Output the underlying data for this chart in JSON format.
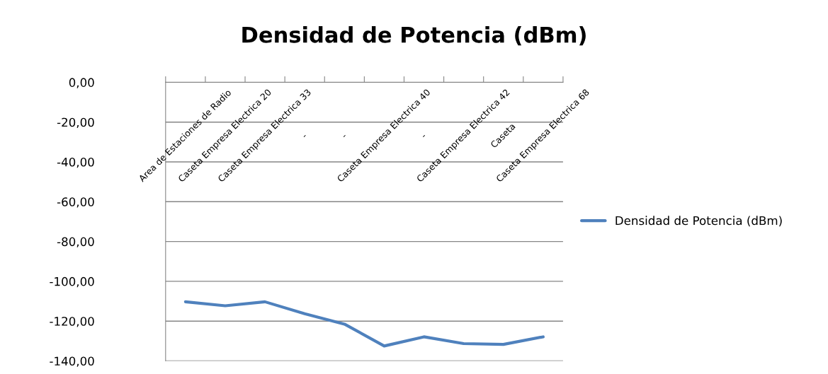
{
  "chart_data": {
    "type": "line",
    "title": "Densidad de Potencia (dBm)",
    "categories": [
      "Area de Estaciones de Radio",
      "Caseta Empresa Electrica 20",
      "Caseta Empresa Electrica 33",
      "-",
      "-",
      "Caseta Empresa Electrica 40",
      "-",
      "Caseta Empresa Electrica 42",
      "Caseta",
      "Caseta Empresa Electrica 68"
    ],
    "series": [
      {
        "name": "Densidad de Potencia (dBm)",
        "color": "#4f81bd",
        "values": [
          -110.3,
          -112.3,
          -110.3,
          -116.3,
          -121.5,
          -132.5,
          -127.9,
          -131.3,
          -131.7,
          -127.9
        ]
      }
    ],
    "ylim": [
      -140,
      0
    ],
    "yticks": [
      {
        "value": -140,
        "label": "-140,00"
      },
      {
        "value": -120,
        "label": "-120,00"
      },
      {
        "value": -100,
        "label": "-100,00"
      },
      {
        "value": -80,
        "label": "-80,00"
      },
      {
        "value": -60,
        "label": "-60,00"
      },
      {
        "value": -40,
        "label": "-40,00"
      },
      {
        "value": -20,
        "label": "-20,00"
      },
      {
        "value": 0,
        "label": "0,00"
      }
    ],
    "grid": "y",
    "legend": "right",
    "marker": "none",
    "line_style": "solid"
  }
}
